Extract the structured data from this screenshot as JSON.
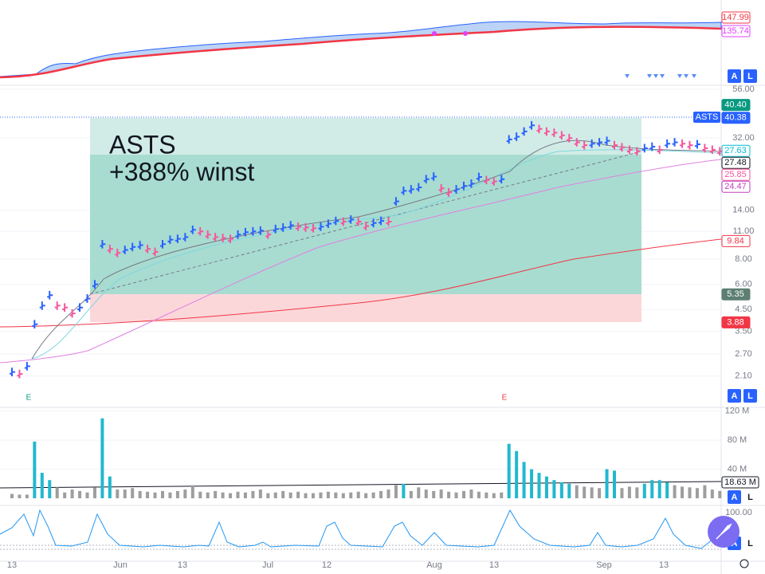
{
  "top_pane": {
    "labels": [
      {
        "value": 147.99,
        "label": "147.99",
        "color": "#f23645"
      },
      {
        "value": 135.74,
        "label": "135.74",
        "color": "#e040fb"
      }
    ]
  },
  "price_pane": {
    "symbol": "ASTS",
    "annotation_symbol": "ASTS",
    "annotation_gain": "+388% winst",
    "log": true,
    "ylim": [
      1.55,
      58
    ],
    "yticks": [
      {
        "value": 56,
        "label": "56.00"
      },
      {
        "value": 32,
        "label": "32.00"
      },
      {
        "value": 14,
        "label": "14.00"
      },
      {
        "value": 11,
        "label": "11.00"
      },
      {
        "value": 8,
        "label": "8.00"
      },
      {
        "value": 6,
        "label": "6.00"
      },
      {
        "value": 4.5,
        "label": "4.50"
      },
      {
        "value": 3.5,
        "label": "3.50"
      },
      {
        "value": 2.7,
        "label": "2.70"
      },
      {
        "value": 2.1,
        "label": "2.10"
      }
    ],
    "up_color": "#2962ff",
    "down_color": "#f7559c",
    "closes": [
      2.2,
      2.15,
      2.35,
      3.8,
      4.7,
      5.3,
      4.7,
      4.6,
      4.3,
      4.6,
      5.1,
      6.0,
      9.5,
      9.0,
      8.6,
      8.9,
      9.2,
      9.4,
      9.0,
      8.7,
      9.5,
      10.0,
      10.1,
      10.3,
      11.2,
      11.0,
      10.6,
      10.3,
      10.2,
      10.1,
      10.6,
      10.9,
      11.0,
      11.1,
      10.6,
      11.3,
      11.5,
      11.8,
      11.6,
      11.5,
      11.4,
      11.6,
      12.0,
      12.4,
      12.3,
      12.6,
      12.3,
      11.7,
      12.1,
      12.4,
      12.3,
      15.5,
      17.5,
      17.8,
      18.2,
      20.0,
      20.6,
      18.0,
      17.2,
      17.8,
      18.5,
      19.0,
      20.5,
      19.8,
      19.5,
      20.0,
      31.5,
      32.5,
      34.5,
      37.0,
      35.5,
      34.5,
      34.0,
      33.0,
      32.0,
      30.5,
      29.5,
      30.0,
      30.5,
      31.0,
      29.5,
      28.8,
      28.0,
      27.5,
      28.5,
      29.0,
      28.0,
      30.0,
      30.5,
      30.0,
      29.5,
      29.8,
      28.5,
      28.0,
      27.5
    ],
    "price_labels": [
      {
        "value": 40.4,
        "label": "40.40",
        "bg": "#089981",
        "fg": "#ffffff"
      },
      {
        "value": 40.38,
        "label": "40.38",
        "bg": "#2962ff",
        "fg": "#ffffff"
      },
      {
        "value": 27.63,
        "label": "27.63",
        "bg": "#ffffff",
        "fg": "#00bcd4"
      },
      {
        "value": 27.48,
        "label": "27.48",
        "bg": "#ffffff",
        "fg": "#131722"
      },
      {
        "value": 25.85,
        "label": "25.85",
        "bg": "#ffffff",
        "fg": "#f7559c"
      },
      {
        "value": 24.47,
        "label": "24.47",
        "bg": "#ffffff",
        "fg": "#c040c0"
      },
      {
        "value": 9.84,
        "label": "9.84",
        "bg": "#ffffff",
        "fg": "#f23645"
      },
      {
        "value": 5.35,
        "label": "5.35",
        "bg": "#5d7f72",
        "fg": "#ffffff"
      },
      {
        "value": 3.88,
        "label": "3.88",
        "bg": "#f23645",
        "fg": "#ffffff"
      }
    ],
    "earnings_markers": [
      "E",
      "E"
    ]
  },
  "volume_pane": {
    "ylim": [
      0,
      124
    ],
    "yticks": [
      {
        "value": 120,
        "label": "120 M"
      },
      {
        "value": 80,
        "label": "80 M"
      },
      {
        "value": 40,
        "label": "40 M"
      }
    ],
    "color": "#9e9e9e",
    "high_volume_color": "#22b8cf",
    "volumes": [
      6,
      5,
      5,
      78,
      35,
      25,
      15,
      8,
      12,
      10,
      8,
      15,
      110,
      30,
      12,
      12,
      14,
      10,
      9,
      8,
      10,
      8,
      10,
      12,
      18,
      9,
      8,
      10,
      8,
      7,
      9,
      8,
      10,
      12,
      7,
      8,
      10,
      8,
      9,
      7,
      7,
      8,
      9,
      8,
      7,
      8,
      9,
      7,
      8,
      10,
      12,
      18,
      20,
      10,
      15,
      12,
      10,
      12,
      9,
      8,
      10,
      12,
      9,
      8,
      7,
      8,
      75,
      65,
      50,
      40,
      35,
      30,
      25,
      22,
      20,
      18,
      16,
      15,
      14,
      40,
      38,
      14,
      16,
      15,
      20,
      25,
      25,
      22,
      18,
      16,
      15,
      14,
      18,
      12,
      10
    ],
    "average_label": {
      "value": 18.63,
      "label": "18.63 M"
    }
  },
  "oscillator_pane": {
    "top_label": {
      "value": 100,
      "label": "100.00"
    }
  },
  "x_axis": {
    "labels": [
      "13",
      "Jun",
      "13",
      "Jul",
      "12",
      "Aug",
      "13",
      "Sep",
      "13"
    ]
  },
  "buttons": [
    "A",
    "L"
  ]
}
